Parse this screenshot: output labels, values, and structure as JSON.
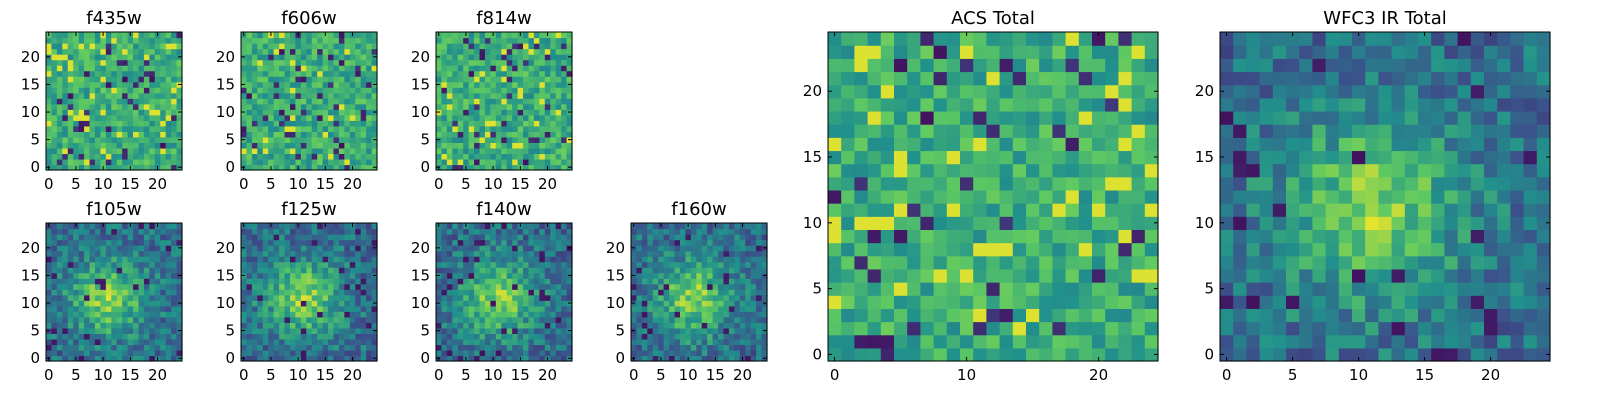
{
  "chart_data": [
    {
      "type": "heatmap",
      "title": "f435w",
      "grid_size": 25,
      "xlim": [
        0,
        24
      ],
      "ylim": [
        0,
        24
      ],
      "xticks": [
        0,
        5,
        10,
        15,
        20
      ],
      "yticks": [
        0,
        5,
        10,
        15,
        20
      ],
      "pattern": "noise",
      "seed": 11
    },
    {
      "type": "heatmap",
      "title": "f606w",
      "grid_size": 25,
      "xlim": [
        0,
        24
      ],
      "ylim": [
        0,
        24
      ],
      "xticks": [
        0,
        5,
        10,
        15,
        20
      ],
      "yticks": [
        0,
        5,
        10,
        15,
        20
      ],
      "pattern": "noise",
      "seed": 23
    },
    {
      "type": "heatmap",
      "title": "f814w",
      "grid_size": 25,
      "xlim": [
        0,
        24
      ],
      "ylim": [
        0,
        24
      ],
      "xticks": [
        0,
        5,
        10,
        15,
        20
      ],
      "yticks": [
        0,
        5,
        10,
        15,
        20
      ],
      "pattern": "noise",
      "seed": 37
    },
    {
      "type": "heatmap",
      "title": "f105w",
      "grid_size": 25,
      "xlim": [
        0,
        24
      ],
      "ylim": [
        0,
        24
      ],
      "xticks": [
        0,
        5,
        10,
        15,
        20
      ],
      "yticks": [
        0,
        5,
        10,
        15,
        20
      ],
      "pattern": "source",
      "seed": 41
    },
    {
      "type": "heatmap",
      "title": "f125w",
      "grid_size": 25,
      "xlim": [
        0,
        24
      ],
      "ylim": [
        0,
        24
      ],
      "xticks": [
        0,
        5,
        10,
        15,
        20
      ],
      "yticks": [
        0,
        5,
        10,
        15,
        20
      ],
      "pattern": "source",
      "seed": 53
    },
    {
      "type": "heatmap",
      "title": "f140w",
      "grid_size": 25,
      "xlim": [
        0,
        24
      ],
      "ylim": [
        0,
        24
      ],
      "xticks": [
        0,
        5,
        10,
        15,
        20
      ],
      "yticks": [
        0,
        5,
        10,
        15,
        20
      ],
      "pattern": "source",
      "seed": 67
    },
    {
      "type": "heatmap",
      "title": "f160w",
      "grid_size": 25,
      "xlim": [
        0,
        24
      ],
      "ylim": [
        0,
        24
      ],
      "xticks": [
        0,
        5,
        10,
        15,
        20
      ],
      "yticks": [
        0,
        5,
        10,
        15,
        20
      ],
      "pattern": "source",
      "seed": 79
    },
    {
      "type": "heatmap",
      "title": "ACS Total",
      "grid_size": 25,
      "xlim": [
        0,
        24
      ],
      "ylim": [
        0,
        24
      ],
      "xticks": [
        0,
        10,
        20
      ],
      "yticks": [
        0,
        5,
        10,
        15,
        20
      ],
      "pattern": "noise",
      "seed": 97
    },
    {
      "type": "heatmap",
      "title": "WFC3 IR Total",
      "grid_size": 25,
      "xlim": [
        0,
        24
      ],
      "ylim": [
        0,
        24
      ],
      "xticks": [
        0,
        5,
        10,
        15,
        20
      ],
      "yticks": [
        0,
        5,
        10,
        15,
        20
      ],
      "pattern": "source",
      "seed": 113
    }
  ],
  "colormap": [
    "#440154",
    "#3b528b",
    "#21918c",
    "#5ec962",
    "#fde725"
  ]
}
